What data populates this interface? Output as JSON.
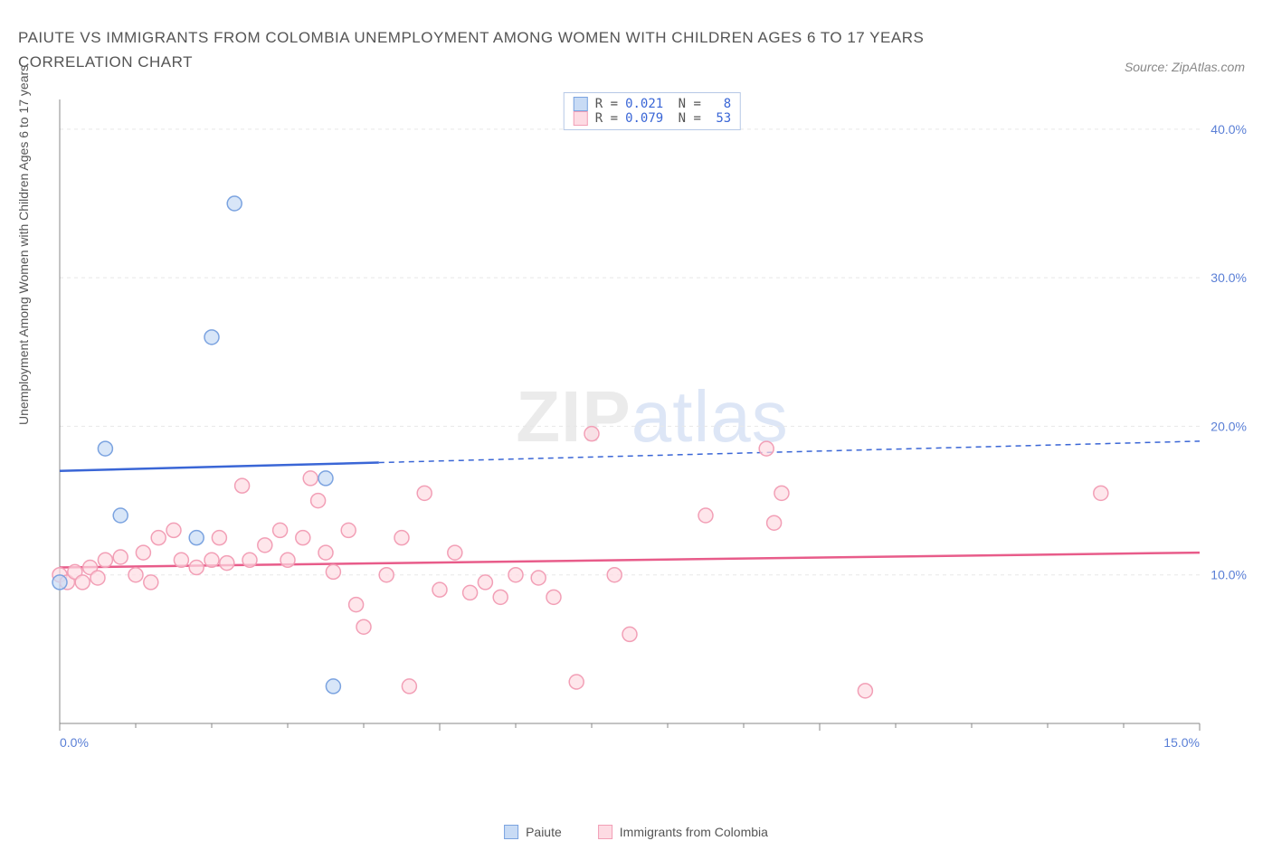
{
  "title": "PAIUTE VS IMMIGRANTS FROM COLOMBIA UNEMPLOYMENT AMONG WOMEN WITH CHILDREN AGES 6 TO 17 YEARS CORRELATION CHART",
  "source": "Source: ZipAtlas.com",
  "y_axis_label": "Unemployment Among Women with Children Ages 6 to 17 years",
  "watermark": {
    "part1": "ZIP",
    "part2": "atlas"
  },
  "chart": {
    "type": "scatter",
    "xlim": [
      0,
      15
    ],
    "ylim": [
      0,
      42
    ],
    "x_ticks": [
      0,
      5,
      10,
      15
    ],
    "x_tick_labels": [
      "0.0%",
      "",
      "",
      "15.0%"
    ],
    "y_ticks": [
      10,
      20,
      30,
      40
    ],
    "y_tick_labels": [
      "10.0%",
      "20.0%",
      "30.0%",
      "40.0%"
    ],
    "grid_color": "#e8e8e8",
    "axis_color": "#888888",
    "background": "#ffffff",
    "tick_label_color": "#5a7fd6",
    "series": [
      {
        "name": "Paiute",
        "label": "Paiute",
        "fill": "#c8dbf5",
        "stroke": "#7ba3e0",
        "r_value": "0.021",
        "n_value": "8",
        "trend": {
          "x1": 0,
          "y1": 17,
          "x2": 15,
          "y2": 19,
          "solid_until_x": 4.2,
          "color": "#3a66d6"
        },
        "points": [
          [
            0.0,
            9.5
          ],
          [
            0.6,
            18.5
          ],
          [
            0.8,
            14
          ],
          [
            1.8,
            12.5
          ],
          [
            2.3,
            35
          ],
          [
            2.0,
            26
          ],
          [
            3.5,
            16.5
          ],
          [
            3.6,
            2.5
          ]
        ]
      },
      {
        "name": "Immigrants from Colombia",
        "label": "Immigrants from Colombia",
        "fill": "#fddbe3",
        "stroke": "#f29fb6",
        "r_value": "0.079",
        "n_value": "53",
        "trend": {
          "x1": 0,
          "y1": 10.5,
          "x2": 15,
          "y2": 11.5,
          "solid_until_x": 15,
          "color": "#e85c8a"
        },
        "points": [
          [
            0.0,
            10
          ],
          [
            0.1,
            9.5
          ],
          [
            0.2,
            10.2
          ],
          [
            0.3,
            9.5
          ],
          [
            0.4,
            10.5
          ],
          [
            0.5,
            9.8
          ],
          [
            0.6,
            11
          ],
          [
            0.8,
            11.2
          ],
          [
            1.0,
            10
          ],
          [
            1.1,
            11.5
          ],
          [
            1.2,
            9.5
          ],
          [
            1.3,
            12.5
          ],
          [
            1.5,
            13
          ],
          [
            1.6,
            11
          ],
          [
            1.8,
            10.5
          ],
          [
            2.0,
            11
          ],
          [
            2.1,
            12.5
          ],
          [
            2.2,
            10.8
          ],
          [
            2.4,
            16
          ],
          [
            2.5,
            11
          ],
          [
            2.7,
            12
          ],
          [
            2.9,
            13
          ],
          [
            3.0,
            11
          ],
          [
            3.2,
            12.5
          ],
          [
            3.3,
            16.5
          ],
          [
            3.4,
            15
          ],
          [
            3.5,
            11.5
          ],
          [
            3.6,
            10.2
          ],
          [
            3.8,
            13
          ],
          [
            3.9,
            8
          ],
          [
            4.0,
            6.5
          ],
          [
            4.3,
            10
          ],
          [
            4.5,
            12.5
          ],
          [
            4.6,
            2.5
          ],
          [
            4.8,
            15.5
          ],
          [
            5.0,
            9
          ],
          [
            5.2,
            11.5
          ],
          [
            5.4,
            8.8
          ],
          [
            5.6,
            9.5
          ],
          [
            5.8,
            8.5
          ],
          [
            6.0,
            10
          ],
          [
            6.3,
            9.8
          ],
          [
            6.5,
            8.5
          ],
          [
            6.8,
            2.8
          ],
          [
            7.0,
            19.5
          ],
          [
            7.3,
            10
          ],
          [
            7.5,
            6
          ],
          [
            8.5,
            14
          ],
          [
            9.3,
            18.5
          ],
          [
            9.4,
            13.5
          ],
          [
            9.5,
            15.5
          ],
          [
            10.6,
            2.2
          ],
          [
            13.7,
            15.5
          ]
        ]
      }
    ]
  },
  "legend_bottom": [
    {
      "label": "Paiute",
      "fill": "#c8dbf5",
      "stroke": "#7ba3e0"
    },
    {
      "label": "Immigrants from Colombia",
      "fill": "#fddbe3",
      "stroke": "#f29fb6"
    }
  ]
}
